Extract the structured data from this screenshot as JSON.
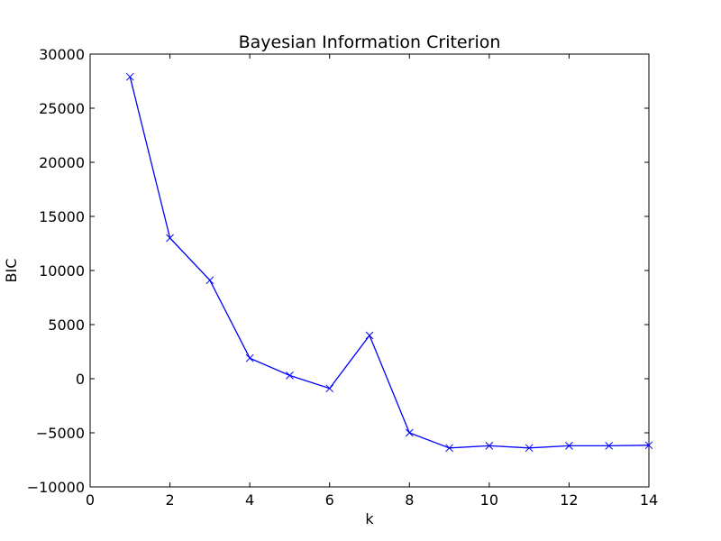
{
  "chart_data": {
    "type": "line",
    "title": "Bayesian Information Criterion",
    "xlabel": "k",
    "ylabel": "BIC",
    "xlim": [
      0,
      14
    ],
    "ylim": [
      -10000,
      30000
    ],
    "xticks": [
      0,
      2,
      4,
      6,
      8,
      10,
      12,
      14
    ],
    "yticks": [
      -10000,
      -5000,
      0,
      5000,
      10000,
      15000,
      20000,
      25000,
      30000
    ],
    "xtick_labels": [
      "0",
      "2",
      "4",
      "6",
      "8",
      "10",
      "12",
      "14"
    ],
    "ytick_labels": [
      "−10000",
      "−5000",
      "0",
      "5000",
      "10000",
      "15000",
      "20000",
      "25000",
      "30000"
    ],
    "grid": false,
    "marker": "x",
    "color": "#0000ff",
    "series": [
      {
        "x": [
          1,
          2,
          3,
          4,
          5,
          6,
          7,
          8,
          9,
          10,
          11,
          12,
          13,
          14
        ],
        "values": [
          27900,
          13000,
          9100,
          1900,
          300,
          -900,
          4000,
          -5000,
          -6400,
          -6200,
          -6400,
          -6200,
          -6200,
          -6150
        ]
      }
    ]
  }
}
